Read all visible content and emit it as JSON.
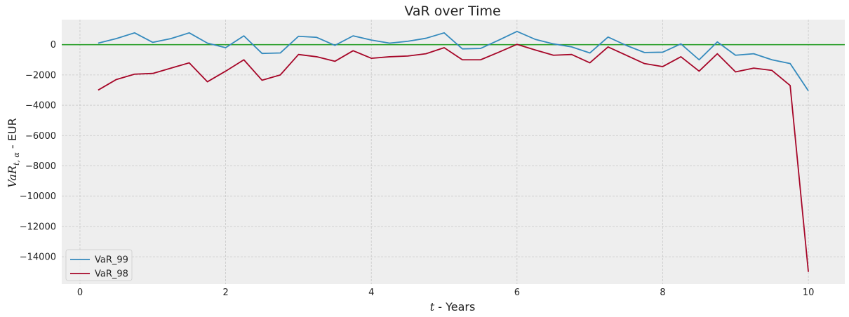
{
  "chart_data": {
    "type": "line",
    "title": "VaR over Time",
    "xlabel": {
      "math": "t",
      "text": " - Years"
    },
    "ylabel": {
      "math": "VaR",
      "sub": "t, α",
      "text": " - EUR"
    },
    "xlim": [
      -0.25,
      10.5
    ],
    "ylim": [
      -15800,
      1650
    ],
    "xticks": [
      0,
      2,
      4,
      6,
      8,
      10
    ],
    "xtick_labels": [
      "0",
      "2",
      "4",
      "6",
      "8",
      "10"
    ],
    "yticks": [
      0,
      -2000,
      -4000,
      -6000,
      -8000,
      -10000,
      -12000,
      -14000
    ],
    "ytick_labels": [
      "0",
      "−2000",
      "−4000",
      "−6000",
      "−8000",
      "−10000",
      "−12000",
      "−14000"
    ],
    "grid": true,
    "legend": "lower-left",
    "reference_line": {
      "y": 0,
      "color": "#2ca02c"
    },
    "x": [
      0.25,
      0.5,
      0.75,
      1.0,
      1.25,
      1.5,
      1.75,
      2.0,
      2.25,
      2.5,
      2.75,
      3.0,
      3.25,
      3.5,
      3.75,
      4.0,
      4.25,
      4.5,
      4.75,
      5.0,
      5.25,
      5.5,
      5.75,
      6.0,
      6.25,
      6.5,
      6.75,
      7.0,
      7.25,
      7.5,
      7.75,
      8.0,
      8.25,
      8.5,
      8.75,
      9.0,
      9.25,
      9.5,
      9.75,
      10.0
    ],
    "series": [
      {
        "name": "VaR_99",
        "color": "#348abd",
        "values": [
          100,
          400,
          780,
          150,
          400,
          780,
          100,
          -200,
          580,
          -580,
          -550,
          550,
          480,
          -50,
          580,
          300,
          100,
          220,
          420,
          780,
          -280,
          -250,
          300,
          870,
          350,
          50,
          -150,
          -550,
          500,
          -50,
          -520,
          -500,
          50,
          -1000,
          180,
          -700,
          -600,
          -1000,
          -1250,
          -3050
        ]
      },
      {
        "name": "VaR_98",
        "color": "#a60628",
        "values": [
          -3000,
          -2300,
          -1950,
          -1900,
          -1550,
          -1200,
          -2450,
          -1750,
          -1000,
          -2350,
          -2000,
          -650,
          -800,
          -1100,
          -400,
          -900,
          -800,
          -750,
          -600,
          -200,
          -1000,
          -1000,
          -500,
          20,
          -350,
          -700,
          -650,
          -1200,
          -150,
          -700,
          -1250,
          -1450,
          -800,
          -1750,
          -600,
          -1800,
          -1550,
          -1700,
          -2700,
          -15000
        ]
      }
    ]
  }
}
